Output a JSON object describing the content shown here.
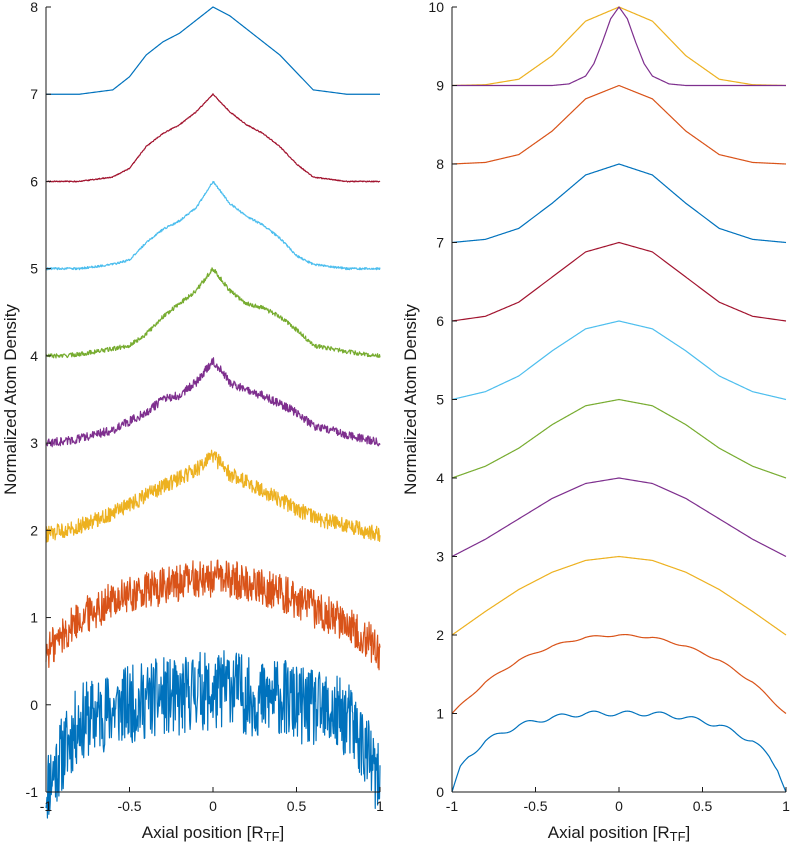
{
  "chart_data": [
    {
      "type": "line",
      "xlabel": "Axial position [R",
      "xlabel_sub": "TF",
      "xlabel_end": "]",
      "ylabel": "Normalized Atom Density",
      "xlim": [
        -1,
        1
      ],
      "ylim": [
        -1,
        8
      ],
      "x_ticks": [
        -1,
        -0.5,
        0,
        0.5,
        1
      ],
      "x_tick_labels": [
        "-1",
        "-0.5",
        "0",
        "0.5",
        "1"
      ],
      "y_ticks": [
        -1,
        0,
        1,
        2,
        3,
        4,
        5,
        6,
        7,
        8
      ],
      "y_tick_labels": [
        "-1",
        "0",
        "1",
        "2",
        "3",
        "4",
        "5",
        "6",
        "7",
        "8"
      ],
      "grid": false,
      "series": [
        {
          "color": "#0072BD",
          "x": [
            -1,
            -0.9,
            -0.8,
            -0.6,
            -0.5,
            -0.4,
            -0.3,
            -0.2,
            -0.1,
            0,
            0.1,
            0.2,
            0.3,
            0.4,
            0.5,
            0.6,
            0.8,
            0.9,
            1
          ],
          "y": [
            -0.95,
            -0.55,
            -0.2,
            -0.05,
            0,
            0.05,
            0.1,
            0.05,
            0.2,
            0.1,
            0.25,
            0.1,
            0.05,
            0.1,
            0,
            -0.05,
            -0.15,
            -0.45,
            -0.95
          ],
          "noise": 0.45
        },
        {
          "color": "#D95319",
          "x": [
            -1,
            -0.9,
            -0.8,
            -0.6,
            -0.5,
            -0.4,
            -0.3,
            -0.2,
            -0.1,
            0,
            0.1,
            0.2,
            0.3,
            0.4,
            0.5,
            0.6,
            0.8,
            0.9,
            1
          ],
          "y": [
            0.6,
            0.8,
            1.0,
            1.2,
            1.25,
            1.3,
            1.35,
            1.4,
            1.45,
            1.45,
            1.45,
            1.4,
            1.35,
            1.3,
            1.2,
            1.1,
            0.95,
            0.8,
            0.6
          ],
          "noise": 0.22
        },
        {
          "color": "#EDB120",
          "x": [
            -1,
            -0.9,
            -0.8,
            -0.6,
            -0.5,
            -0.4,
            -0.3,
            -0.2,
            -0.1,
            0,
            0.1,
            0.2,
            0.3,
            0.4,
            0.5,
            0.6,
            0.8,
            0.9,
            1
          ],
          "y": [
            1.95,
            2.0,
            2.05,
            2.2,
            2.3,
            2.4,
            2.5,
            2.6,
            2.7,
            2.85,
            2.65,
            2.55,
            2.45,
            2.35,
            2.25,
            2.15,
            2.05,
            2.0,
            1.95
          ],
          "noise": 0.09
        },
        {
          "color": "#7E2F8E",
          "x": [
            -1,
            -0.9,
            -0.8,
            -0.6,
            -0.5,
            -0.4,
            -0.3,
            -0.2,
            -0.1,
            0,
            0.1,
            0.2,
            0.3,
            0.4,
            0.5,
            0.6,
            0.8,
            0.9,
            1
          ],
          "y": [
            3.0,
            3.02,
            3.05,
            3.15,
            3.25,
            3.35,
            3.5,
            3.55,
            3.7,
            3.95,
            3.7,
            3.6,
            3.55,
            3.45,
            3.35,
            3.2,
            3.1,
            3.05,
            3.0
          ],
          "noise": 0.05
        },
        {
          "color": "#77AC30",
          "x": [
            -1,
            -0.9,
            -0.8,
            -0.6,
            -0.5,
            -0.4,
            -0.3,
            -0.2,
            -0.1,
            0,
            0.1,
            0.2,
            0.3,
            0.4,
            0.5,
            0.6,
            0.8,
            0.9,
            1
          ],
          "y": [
            4.0,
            4.0,
            4.02,
            4.08,
            4.12,
            4.25,
            4.45,
            4.6,
            4.75,
            5.0,
            4.75,
            4.6,
            4.55,
            4.45,
            4.3,
            4.12,
            4.05,
            4.02,
            4.0
          ],
          "noise": 0.025
        },
        {
          "color": "#4DBEEE",
          "x": [
            -1,
            -0.9,
            -0.8,
            -0.6,
            -0.5,
            -0.4,
            -0.3,
            -0.2,
            -0.1,
            0,
            0.1,
            0.2,
            0.3,
            0.4,
            0.5,
            0.6,
            0.8,
            0.9,
            1
          ],
          "y": [
            5.0,
            5.0,
            5.0,
            5.05,
            5.1,
            5.3,
            5.45,
            5.55,
            5.7,
            6.0,
            5.75,
            5.6,
            5.5,
            5.35,
            5.15,
            5.05,
            5.0,
            5.0,
            5.0
          ],
          "noise": 0.012
        },
        {
          "color": "#A2142F",
          "x": [
            -1,
            -0.9,
            -0.8,
            -0.6,
            -0.5,
            -0.4,
            -0.3,
            -0.2,
            -0.1,
            0,
            0.1,
            0.2,
            0.3,
            0.4,
            0.5,
            0.6,
            0.8,
            0.9,
            1
          ],
          "y": [
            6.0,
            6.0,
            6.0,
            6.05,
            6.15,
            6.4,
            6.55,
            6.65,
            6.8,
            7.0,
            6.8,
            6.65,
            6.55,
            6.4,
            6.2,
            6.05,
            6.0,
            6.0,
            6.0
          ],
          "noise": 0.006
        },
        {
          "color": "#0072BD",
          "x": [
            -1,
            -0.9,
            -0.8,
            -0.6,
            -0.5,
            -0.4,
            -0.3,
            -0.2,
            -0.1,
            0,
            0.1,
            0.2,
            0.3,
            0.4,
            0.5,
            0.6,
            0.8,
            0.9,
            1
          ],
          "y": [
            7.0,
            7.0,
            7.0,
            7.05,
            7.2,
            7.45,
            7.6,
            7.7,
            7.85,
            8.0,
            7.9,
            7.75,
            7.6,
            7.45,
            7.25,
            7.05,
            7.0,
            7.0,
            7.0
          ],
          "noise": 0.0
        }
      ]
    },
    {
      "type": "line",
      "xlabel": "Axial position [R",
      "xlabel_sub": "TF",
      "xlabel_end": "]",
      "ylabel": "Normalized Atom Density",
      "xlim": [
        -1,
        1
      ],
      "ylim": [
        0,
        10
      ],
      "x_ticks": [
        -1,
        -0.5,
        0,
        0.5,
        1
      ],
      "x_tick_labels": [
        "-1",
        "-0.5",
        "0",
        "0.5",
        "1"
      ],
      "y_ticks": [
        0,
        1,
        2,
        3,
        4,
        5,
        6,
        7,
        8,
        9,
        10
      ],
      "y_tick_labels": [
        "0",
        "1",
        "2",
        "3",
        "4",
        "5",
        "6",
        "7",
        "8",
        "9",
        "10"
      ],
      "grid": false,
      "series": [
        {
          "color": "#0072BD",
          "x": [
            -1,
            -0.95,
            -0.9,
            -0.8,
            -0.6,
            -0.4,
            -0.2,
            0,
            0.2,
            0.4,
            0.6,
            0.8,
            0.9,
            0.95,
            1
          ],
          "y": [
            0.0,
            0.3,
            0.45,
            0.65,
            0.85,
            0.95,
            1.0,
            1.0,
            1.0,
            0.95,
            0.85,
            0.65,
            0.45,
            0.3,
            0.0
          ],
          "ripple": 0.03
        },
        {
          "color": "#D95319",
          "x": [
            -1,
            -0.8,
            -0.6,
            -0.4,
            -0.2,
            0,
            0.2,
            0.4,
            0.6,
            0.8,
            1
          ],
          "y": [
            1.0,
            1.4,
            1.68,
            1.86,
            1.97,
            2.0,
            1.97,
            1.86,
            1.68,
            1.4,
            1.0
          ],
          "ripple": 0.012
        },
        {
          "color": "#EDB120",
          "x": [
            -1,
            -0.8,
            -0.6,
            -0.4,
            -0.2,
            0,
            0.2,
            0.4,
            0.6,
            0.8,
            1
          ],
          "y": [
            2.0,
            2.3,
            2.58,
            2.8,
            2.95,
            3.0,
            2.95,
            2.8,
            2.58,
            2.3,
            2.0
          ],
          "ripple": 0
        },
        {
          "color": "#7E2F8E",
          "x": [
            -1,
            -0.8,
            -0.6,
            -0.4,
            -0.2,
            0,
            0.2,
            0.4,
            0.6,
            0.8,
            1
          ],
          "y": [
            3.0,
            3.22,
            3.48,
            3.74,
            3.93,
            4.0,
            3.93,
            3.74,
            3.48,
            3.22,
            3.0
          ],
          "ripple": 0
        },
        {
          "color": "#77AC30",
          "x": [
            -1,
            -0.8,
            -0.6,
            -0.4,
            -0.2,
            0,
            0.2,
            0.4,
            0.6,
            0.8,
            1
          ],
          "y": [
            4.0,
            4.15,
            4.38,
            4.68,
            4.92,
            5.0,
            4.92,
            4.68,
            4.38,
            4.15,
            4.0
          ],
          "ripple": 0
        },
        {
          "color": "#4DBEEE",
          "x": [
            -1,
            -0.8,
            -0.6,
            -0.4,
            -0.2,
            0,
            0.2,
            0.4,
            0.6,
            0.8,
            1
          ],
          "y": [
            5.0,
            5.1,
            5.3,
            5.62,
            5.9,
            6.0,
            5.9,
            5.62,
            5.3,
            5.1,
            5.0
          ],
          "ripple": 0
        },
        {
          "color": "#A2142F",
          "x": [
            -1,
            -0.8,
            -0.6,
            -0.4,
            -0.2,
            0,
            0.2,
            0.4,
            0.6,
            0.8,
            1
          ],
          "y": [
            6.0,
            6.06,
            6.24,
            6.56,
            6.88,
            7.0,
            6.88,
            6.56,
            6.24,
            6.06,
            6.0
          ],
          "ripple": 0
        },
        {
          "color": "#0072BD",
          "x": [
            -1,
            -0.8,
            -0.6,
            -0.4,
            -0.2,
            0,
            0.2,
            0.4,
            0.6,
            0.8,
            1
          ],
          "y": [
            7.0,
            7.04,
            7.18,
            7.5,
            7.86,
            8.0,
            7.86,
            7.5,
            7.18,
            7.04,
            7.0
          ],
          "ripple": 0
        },
        {
          "color": "#D95319",
          "x": [
            -1,
            -0.8,
            -0.6,
            -0.4,
            -0.2,
            0,
            0.2,
            0.4,
            0.6,
            0.8,
            1
          ],
          "y": [
            8.0,
            8.02,
            8.12,
            8.42,
            8.83,
            9.0,
            8.83,
            8.42,
            8.12,
            8.02,
            8.0
          ],
          "ripple": 0
        },
        {
          "color": "#EDB120",
          "x": [
            -1,
            -0.8,
            -0.6,
            -0.4,
            -0.2,
            0,
            0.2,
            0.4,
            0.6,
            0.8,
            1
          ],
          "y": [
            9.0,
            9.01,
            9.08,
            9.38,
            9.82,
            10.0,
            9.82,
            9.38,
            9.08,
            9.01,
            9.0
          ],
          "ripple": 0
        },
        {
          "color": "#7E2F8E",
          "x": [
            -1,
            -0.4,
            -0.3,
            -0.2,
            -0.15,
            -0.1,
            -0.05,
            0,
            0.05,
            0.1,
            0.15,
            0.2,
            0.3,
            0.4,
            1
          ],
          "y": [
            9.0,
            9.0,
            9.02,
            9.12,
            9.28,
            9.55,
            9.85,
            10.0,
            9.85,
            9.55,
            9.28,
            9.12,
            9.02,
            9.0,
            9.0
          ],
          "ripple": 0
        }
      ]
    }
  ]
}
